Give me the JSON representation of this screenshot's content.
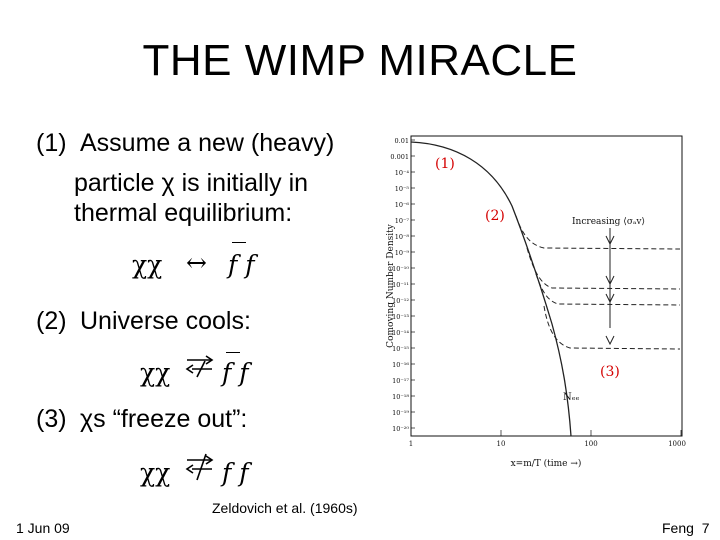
{
  "slide": {
    "title": "THE WIMP MIRACLE",
    "steps": [
      {
        "number": "(1)",
        "lines": [
          "Assume a new (heavy)",
          "particle χ is initially in",
          "thermal equilibrium:"
        ]
      },
      {
        "number": "(2)",
        "lines": [
          "Universe cools:"
        ]
      },
      {
        "number": "(3)",
        "lines": [
          "χs “freeze out”:"
        ]
      }
    ],
    "equations": {
      "eq1_left": "χχ",
      "eq1_arrow": "↔",
      "eq1_right": "f f",
      "eq2_left": "χχ",
      "eq2_right": "f f",
      "eq3_left": "χχ",
      "eq3_right": "f f"
    },
    "citation": "Zeldovich et al. (1960s)",
    "date": "1 Jun 09",
    "footer_right": "Feng  7"
  },
  "plot": {
    "ylabel": "Comoving Number Density",
    "xlabel": "x=m/T (time →)",
    "y_ticks": [
      "0.01",
      "0.001",
      "10⁻⁴",
      "10⁻⁵",
      "10⁻⁶",
      "10⁻⁷",
      "10⁻⁸",
      "10⁻⁹",
      "10⁻¹⁰",
      "10⁻¹¹",
      "10⁻¹²",
      "10⁻¹³",
      "10⁻¹⁴",
      "10⁻¹⁵",
      "10⁻¹⁶",
      "10⁻¹⁷",
      "10⁻¹⁸",
      "10⁻¹⁹",
      "10⁻²⁰"
    ],
    "x_ticks": [
      "1",
      "10",
      "100",
      "1000"
    ],
    "annotation_increasing": "Increasing ⟨σₐv⟩",
    "annotation_neq": "Nₑₑ",
    "region_labels": [
      "(1)",
      "(2)",
      "(3)"
    ],
    "colors": {
      "region_label": "#d40000",
      "curve": "#222222"
    }
  }
}
